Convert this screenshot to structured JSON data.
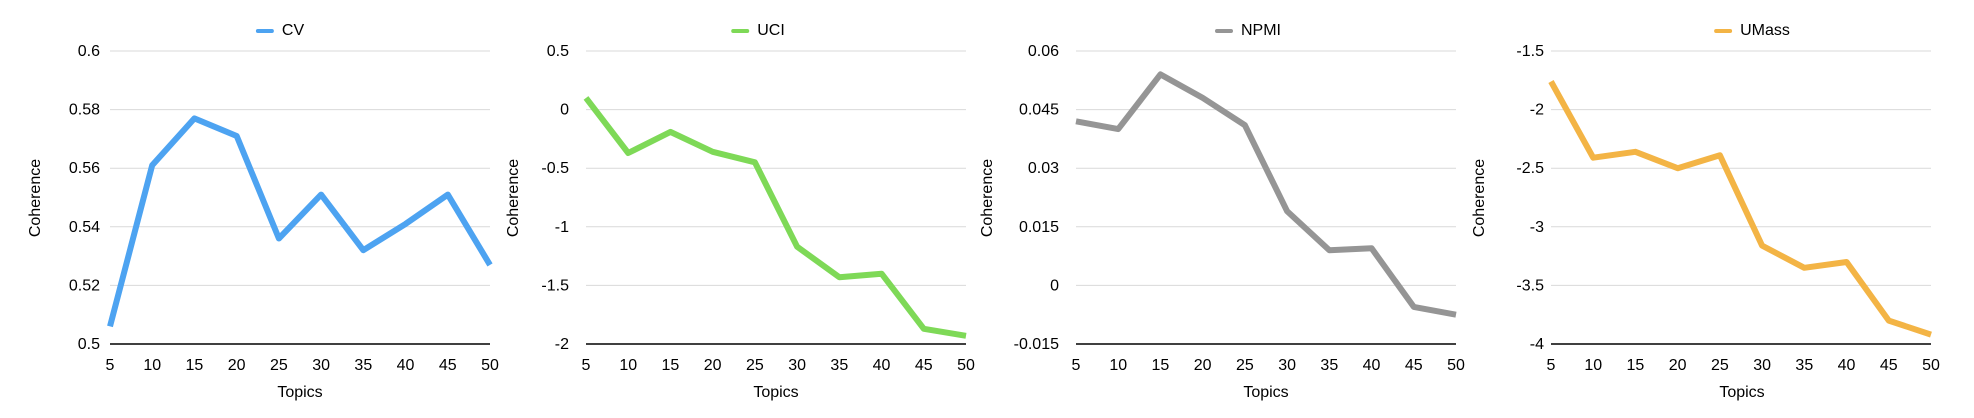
{
  "chart_data": [
    {
      "type": "line",
      "legend": "CV",
      "color": "#4da3f1",
      "xlabel": "Topics",
      "ylabel": "Coherence",
      "x": [
        5,
        10,
        15,
        20,
        25,
        30,
        35,
        40,
        45,
        50
      ],
      "values": [
        0.506,
        0.561,
        0.577,
        0.571,
        0.536,
        0.551,
        0.532,
        0.541,
        0.551,
        0.527
      ],
      "ylim": [
        0.5,
        0.6
      ],
      "yticks": [
        "0.6",
        "0.58",
        "0.56",
        "0.54",
        "0.52",
        "0.5"
      ],
      "ytick_values": [
        0.6,
        0.58,
        0.56,
        0.54,
        0.52,
        0.5
      ],
      "xticks": [
        "5",
        "10",
        "15",
        "20",
        "25",
        "30",
        "35",
        "40",
        "45",
        "50"
      ],
      "grid": true,
      "legend_position": "top"
    },
    {
      "type": "line",
      "legend": "UCI",
      "color": "#7ed957",
      "xlabel": "Topics",
      "ylabel": "Coherence",
      "x": [
        5,
        10,
        15,
        20,
        25,
        30,
        35,
        40,
        45,
        50
      ],
      "values": [
        0.1,
        -0.37,
        -0.19,
        -0.36,
        -0.45,
        -1.17,
        -1.43,
        -1.4,
        -1.87,
        -1.93
      ],
      "ylim": [
        -2,
        0.5
      ],
      "yticks": [
        "0.5",
        "0",
        "-0.5",
        "-1",
        "-1.5",
        "-2"
      ],
      "ytick_values": [
        0.5,
        0,
        -0.5,
        -1,
        -1.5,
        -2
      ],
      "xticks": [
        "5",
        "10",
        "15",
        "20",
        "25",
        "30",
        "35",
        "40",
        "45",
        "50"
      ],
      "grid": true,
      "legend_position": "top"
    },
    {
      "type": "line",
      "legend": "NPMI",
      "color": "#959595",
      "xlabel": "Topics",
      "ylabel": "Coherence",
      "x": [
        5,
        10,
        15,
        20,
        25,
        30,
        35,
        40,
        45,
        50
      ],
      "values": [
        0.042,
        0.04,
        0.054,
        0.048,
        0.041,
        0.019,
        0.009,
        0.0095,
        -0.0055,
        -0.0075
      ],
      "ylim": [
        -0.015,
        0.06
      ],
      "yticks": [
        "0.06",
        "0.045",
        "0.03",
        "0.015",
        "0",
        "-0.015"
      ],
      "ytick_values": [
        0.06,
        0.045,
        0.03,
        0.015,
        0,
        -0.015
      ],
      "xticks": [
        "5",
        "10",
        "15",
        "20",
        "25",
        "30",
        "35",
        "40",
        "45",
        "50"
      ],
      "grid": true,
      "legend_position": "top"
    },
    {
      "type": "line",
      "legend": "UMass",
      "color": "#f3b445",
      "xlabel": "Topics",
      "ylabel": "Coherence",
      "x": [
        5,
        10,
        15,
        20,
        25,
        30,
        35,
        40,
        45,
        50
      ],
      "values": [
        -1.76,
        -2.41,
        -2.36,
        -2.5,
        -2.39,
        -3.16,
        -3.35,
        -3.3,
        -3.8,
        -3.92
      ],
      "ylim": [
        -4,
        -1.5
      ],
      "yticks": [
        "-1.5",
        "-2",
        "-2.5",
        "-3",
        "-3.5",
        "-4"
      ],
      "ytick_values": [
        -1.5,
        -2,
        -2.5,
        -3,
        -3.5,
        -4
      ],
      "xticks": [
        "5",
        "10",
        "15",
        "20",
        "25",
        "30",
        "35",
        "40",
        "45",
        "50"
      ],
      "grid": true,
      "legend_position": "top"
    }
  ]
}
